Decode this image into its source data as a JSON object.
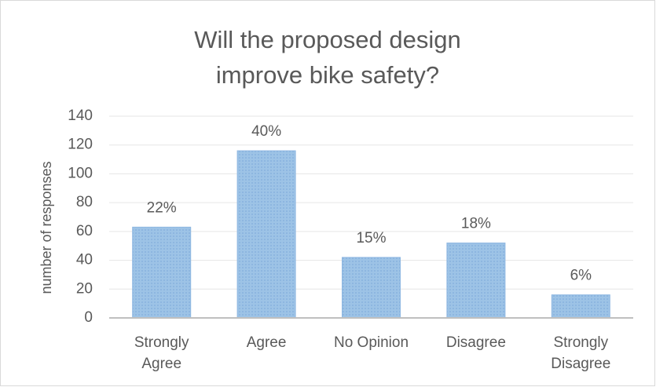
{
  "chart_data": {
    "type": "bar",
    "title": "Will the proposed design improve bike safety?",
    "y_label": "number of responses",
    "categories": [
      "Strongly Agree",
      "Agree",
      "No Opinion",
      "Disagree",
      "Strongly Disagree"
    ],
    "values": [
      63,
      116,
      42,
      52,
      16
    ],
    "value_labels": [
      "22%",
      "40%",
      "15%",
      "18%",
      "6%"
    ],
    "color": "#9dc3e6",
    "ylim": [
      0,
      140
    ],
    "yticks": [
      0,
      20,
      40,
      60,
      80,
      100,
      120,
      140
    ],
    "grid": true
  }
}
